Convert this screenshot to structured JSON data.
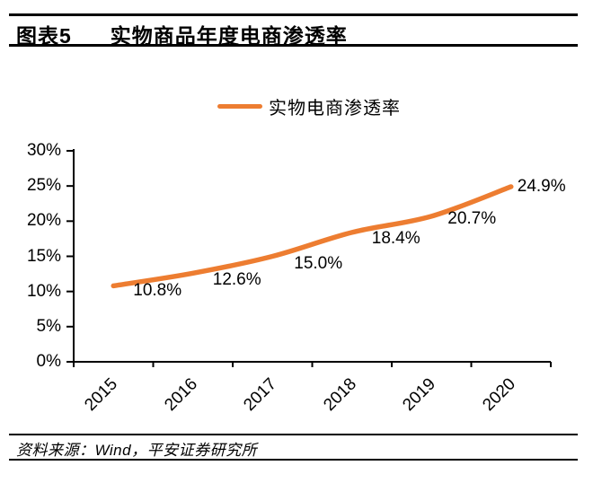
{
  "header": {
    "figure_label": "图表5",
    "title": "实物商品年度电商渗透率"
  },
  "legend": {
    "series_label": "实物电商渗透率"
  },
  "chart_data": {
    "type": "line",
    "title": "实物商品年度电商渗透率",
    "categories": [
      "2015",
      "2016",
      "2017",
      "2018",
      "2019",
      "2020"
    ],
    "series": [
      {
        "name": "实物电商渗透率",
        "values": [
          10.8,
          12.6,
          15.0,
          18.4,
          20.7,
          24.9
        ]
      }
    ],
    "data_labels": [
      "10.8%",
      "12.6%",
      "15.0%",
      "18.4%",
      "20.7%",
      "24.9%"
    ],
    "y_tick_labels": [
      "0%",
      "5%",
      "10%",
      "15%",
      "20%",
      "25%",
      "30%"
    ],
    "y_tick_values": [
      0,
      5,
      10,
      15,
      20,
      25,
      30
    ],
    "ylim": [
      0,
      30
    ],
    "xlabel": "",
    "ylabel": "",
    "grid": false,
    "legend_position": "top",
    "line_color": "#ED7D31",
    "axis_color": "#000000",
    "label_color": "#000000"
  },
  "footer": {
    "source": "资料来源：Wind，平安证券研究所"
  }
}
